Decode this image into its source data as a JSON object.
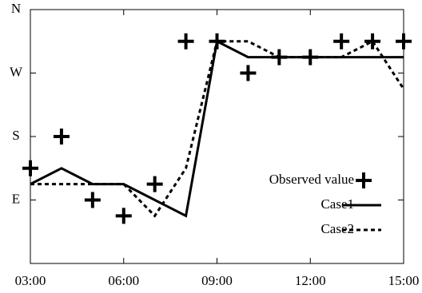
{
  "chart_data": {
    "type": "line",
    "categories": [
      "03:00",
      null,
      null,
      "06:00",
      null,
      null,
      "09:00",
      null,
      null,
      "12:00",
      null,
      null,
      "15:00"
    ],
    "ylim": [
      0,
      360
    ],
    "yticks": [
      {
        "value": 90,
        "label": "E"
      },
      {
        "value": 180,
        "label": "S"
      },
      {
        "value": 270,
        "label": "W"
      },
      {
        "value": 360,
        "label": "N"
      }
    ],
    "legend": "lower right",
    "series": [
      {
        "name": "Observed value",
        "color": "#000000",
        "style": "markers",
        "values": [
          135,
          180,
          90,
          67.5,
          112.5,
          315,
          315,
          270,
          292.5,
          292.5,
          315,
          315,
          315
        ]
      },
      {
        "name": "Case1",
        "color": "#000000",
        "style": "solid",
        "values": [
          112.5,
          135,
          112.5,
          112.5,
          90,
          67.5,
          315,
          292.5,
          292.5,
          292.5,
          292.5,
          292.5,
          292.5
        ]
      },
      {
        "name": "Case2",
        "color": "#000000",
        "style": "dashed",
        "values": [
          112.5,
          112.5,
          112.5,
          112.5,
          67.5,
          135,
          315,
          315,
          292.5,
          292.5,
          292.5,
          315,
          247.5
        ]
      }
    ]
  }
}
